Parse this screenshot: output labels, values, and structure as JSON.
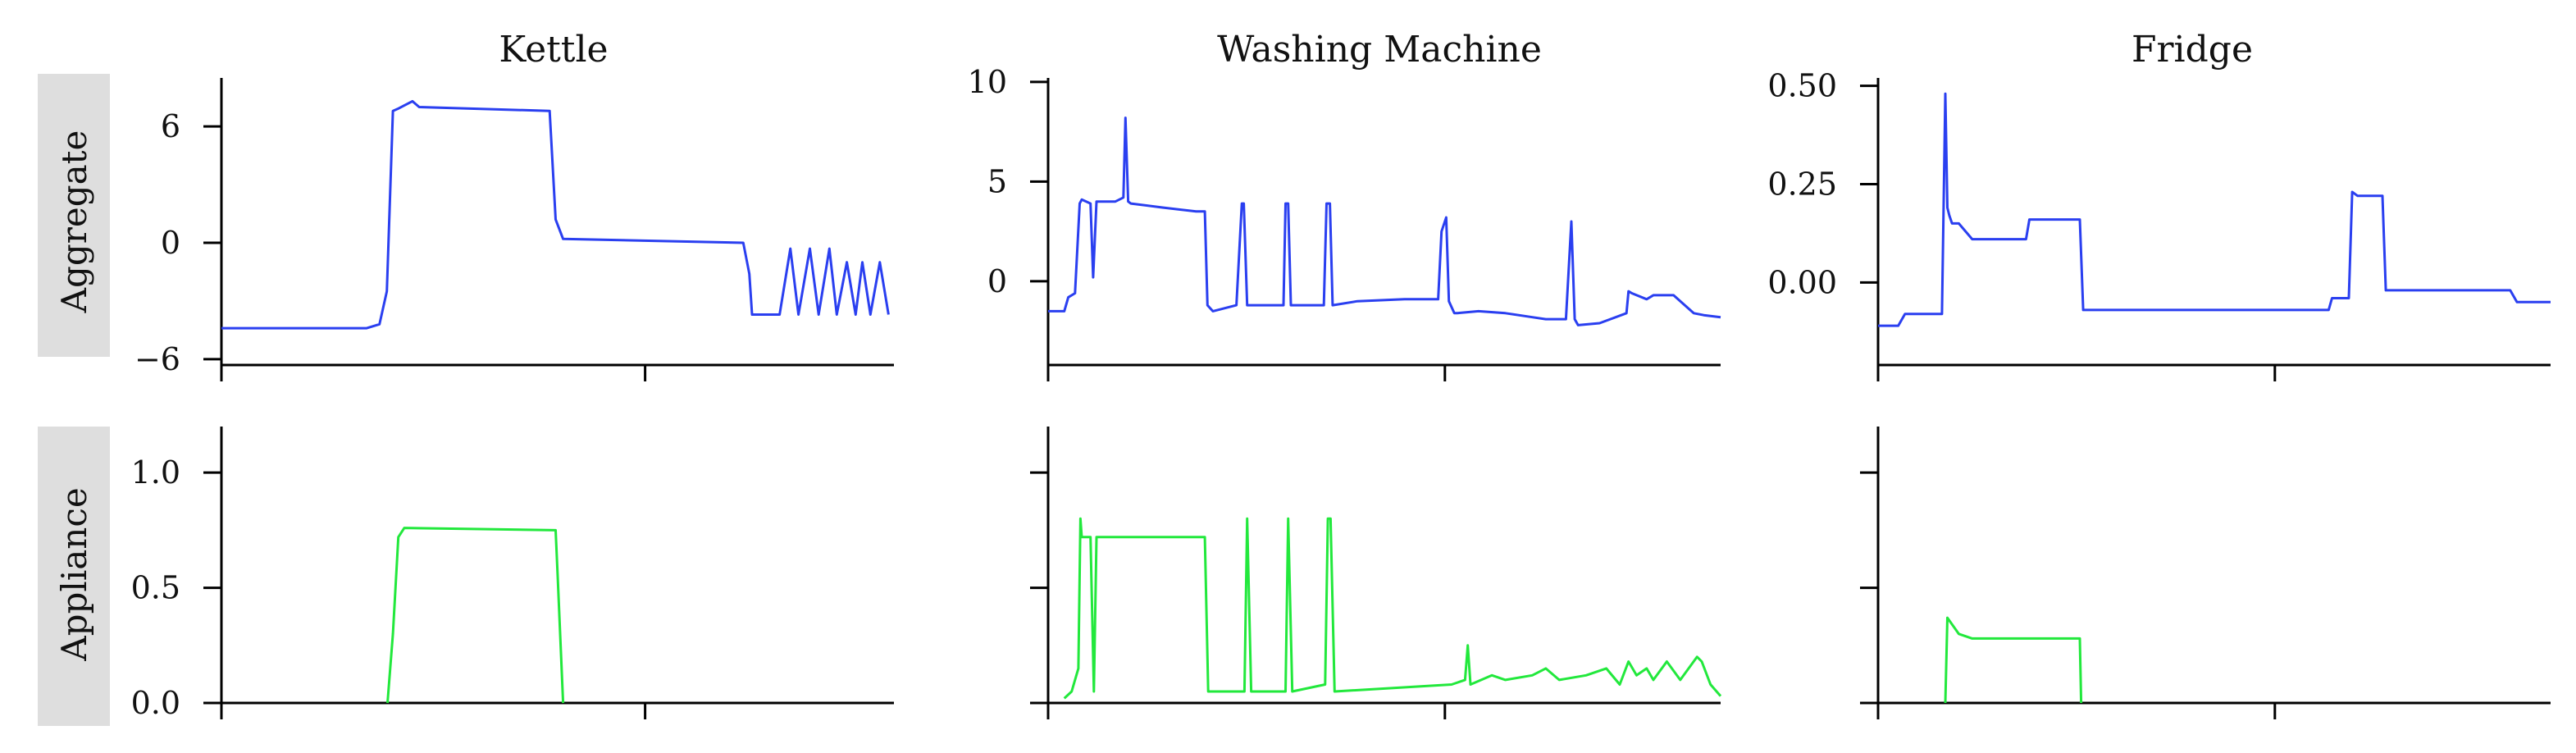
{
  "chart_data": {
    "type": "line",
    "layout": "2x3 grid",
    "row_labels": [
      "Aggregate",
      "Appliance"
    ],
    "column_titles": [
      "Kettle",
      "Washing Machine",
      "Fridge"
    ],
    "colors": {
      "aggregate": "#2a3ff0",
      "appliance": "#22e83c",
      "row_label_bg": "#dedede"
    },
    "panels": [
      {
        "id": "kettle-aggregate",
        "row": 0,
        "col": 0,
        "color": "#2a3ff0",
        "ylim": [
          -6.3,
          8.5
        ],
        "yticks": [
          6,
          0,
          -6
        ],
        "ytick_labels": [
          "6",
          "0",
          "−6"
        ],
        "xlim": [
          0,
          100
        ],
        "xticks": [
          0,
          63
        ],
        "x": [
          0,
          21.6,
          23.5,
          24.6,
          25.5,
          26.2,
          28.4,
          29.4,
          48.8,
          49.7,
          50.8,
          77.6,
          78.5,
          78.9,
          80.7,
          83.0,
          84.6,
          85.8,
          87.5,
          88.8,
          90.4,
          91.5,
          93.0,
          94.3,
          95.3,
          96.5,
          97.9,
          99.2
        ],
        "y": [
          -4.4,
          -4.4,
          -4.2,
          -2.5,
          6.8,
          6.9,
          7.3,
          7.0,
          6.8,
          1.2,
          0.2,
          0.0,
          -1.6,
          -3.7,
          -3.7,
          -3.7,
          -0.3,
          -3.7,
          -0.3,
          -3.7,
          -0.3,
          -3.7,
          -1.0,
          -3.7,
          -1.0,
          -3.7,
          -1.0,
          -3.7
        ]
      },
      {
        "id": "washing-aggregate",
        "row": 0,
        "col": 1,
        "color": "#2a3ff0",
        "ylim": [
          -4.2,
          10.2
        ],
        "yticks": [
          10,
          5,
          0
        ],
        "ytick_labels": [
          "10",
          "5",
          "0"
        ],
        "xlim": [
          0,
          100
        ],
        "xticks": [
          0,
          59
        ],
        "x": [
          0,
          2.4,
          3,
          4,
          4.7,
          5,
          6.3,
          6.7,
          7.2,
          10,
          11.2,
          11.5,
          11.9,
          12.3,
          17,
          22,
          23.3,
          23.7,
          24.5,
          28,
          28.8,
          29.1,
          29.6,
          30.2,
          35,
          35.3,
          35.7,
          36.1,
          41,
          41.4,
          41.9,
          42.3,
          46,
          53,
          58,
          58.5,
          59.2,
          59.6,
          60.4,
          60.8,
          64,
          68,
          72,
          74,
          77,
          77.8,
          78.3,
          78.8,
          82,
          86,
          86.3,
          86.8,
          89,
          90,
          93,
          96,
          97.5,
          100
        ],
        "y": [
          -1.5,
          -1.5,
          -0.8,
          -0.6,
          3.9,
          4.1,
          3.9,
          0.2,
          4.0,
          4.0,
          4.2,
          8.2,
          4.0,
          3.9,
          3.7,
          3.5,
          3.5,
          -1.2,
          -1.5,
          -1.2,
          3.9,
          3.9,
          -1.2,
          -1.2,
          -1.2,
          3.9,
          3.9,
          -1.2,
          -1.2,
          3.9,
          3.9,
          -1.2,
          -1.0,
          -0.9,
          -0.9,
          2.5,
          3.2,
          -1.0,
          -1.6,
          -1.6,
          -1.5,
          -1.6,
          -1.8,
          -1.9,
          -1.9,
          3.0,
          -1.9,
          -2.2,
          -2.1,
          -1.6,
          -0.5,
          -0.6,
          -0.9,
          -0.7,
          -0.7,
          -1.6,
          -1.7,
          -1.8
        ]
      },
      {
        "id": "fridge-aggregate",
        "row": 0,
        "col": 2,
        "color": "#2a3ff0",
        "ylim": [
          -0.21,
          0.52
        ],
        "yticks": [
          0.5,
          0.25,
          0.0
        ],
        "ytick_labels": [
          "0.50",
          "0.25",
          "0.00"
        ],
        "xlim": [
          0,
          100
        ],
        "xticks": [
          0,
          59
        ],
        "x": [
          0,
          3,
          4,
          9.5,
          10,
          10.3,
          10.6,
          11,
          12,
          14,
          22,
          22.5,
          30,
          30.5,
          67,
          67.5,
          70,
          70.5,
          71.3,
          75,
          75.5,
          76,
          94,
          95,
          100
        ],
        "y": [
          -0.11,
          -0.11,
          -0.08,
          -0.08,
          0.48,
          0.19,
          0.17,
          0.15,
          0.15,
          0.11,
          0.11,
          0.16,
          0.16,
          -0.07,
          -0.07,
          -0.04,
          -0.04,
          0.23,
          0.22,
          0.22,
          -0.02,
          -0.02,
          -0.02,
          -0.05,
          -0.05
        ]
      },
      {
        "id": "kettle-appliance",
        "row": 1,
        "col": 0,
        "color": "#22e83c",
        "ylim": [
          0.0,
          1.2
        ],
        "yticks": [
          1.0,
          0.5,
          0.0
        ],
        "ytick_labels": [
          "1.0",
          "0.5",
          "0.0"
        ],
        "xlim": [
          0,
          100
        ],
        "xticks": [
          0,
          63
        ],
        "x": [
          24.7,
          25.5,
          26.3,
          27.2,
          49.7,
          50.0,
          50.8
        ],
        "y": [
          0.0,
          0.3,
          0.72,
          0.76,
          0.75,
          0.55,
          0.0
        ]
      },
      {
        "id": "washing-appliance",
        "row": 1,
        "col": 1,
        "color": "#22e83c",
        "ylim": [
          0.0,
          1.2
        ],
        "yticks": [
          1.0,
          0.5,
          0.0
        ],
        "ytick_labels": [
          "",
          "",
          ""
        ],
        "xlim": [
          0,
          100
        ],
        "xticks": [
          0,
          59
        ],
        "x": [
          2.4,
          3.5,
          4.5,
          4.8,
          5.0,
          6.3,
          6.8,
          7.2,
          23.3,
          23.8,
          29.2,
          29.6,
          30.2,
          35.3,
          35.7,
          36.3,
          41.2,
          41.6,
          42.0,
          42.6,
          60,
          62,
          62.4,
          62.8,
          66,
          68,
          72,
          74,
          76,
          80,
          83,
          85,
          86.3,
          87.5,
          89,
          90,
          92,
          94,
          96.5,
          97.2,
          98.5,
          100
        ],
        "y": [
          0.02,
          0.05,
          0.15,
          0.8,
          0.72,
          0.72,
          0.05,
          0.72,
          0.72,
          0.05,
          0.05,
          0.8,
          0.05,
          0.05,
          0.8,
          0.05,
          0.08,
          0.8,
          0.8,
          0.05,
          0.08,
          0.1,
          0.25,
          0.08,
          0.12,
          0.1,
          0.12,
          0.15,
          0.1,
          0.12,
          0.15,
          0.08,
          0.18,
          0.12,
          0.15,
          0.1,
          0.18,
          0.1,
          0.2,
          0.18,
          0.08,
          0.03
        ]
      },
      {
        "id": "fridge-appliance",
        "row": 1,
        "col": 2,
        "color": "#22e83c",
        "ylim": [
          0.0,
          1.2
        ],
        "yticks": [
          1.0,
          0.5,
          0.0
        ],
        "ytick_labels": [
          "",
          "",
          ""
        ],
        "xlim": [
          0,
          100
        ],
        "xticks": [
          0,
          59
        ],
        "x": [
          10,
          10.3,
          12,
          14,
          30,
          30.2
        ],
        "y": [
          0.0,
          0.37,
          0.3,
          0.28,
          0.28,
          0.0
        ]
      }
    ]
  }
}
